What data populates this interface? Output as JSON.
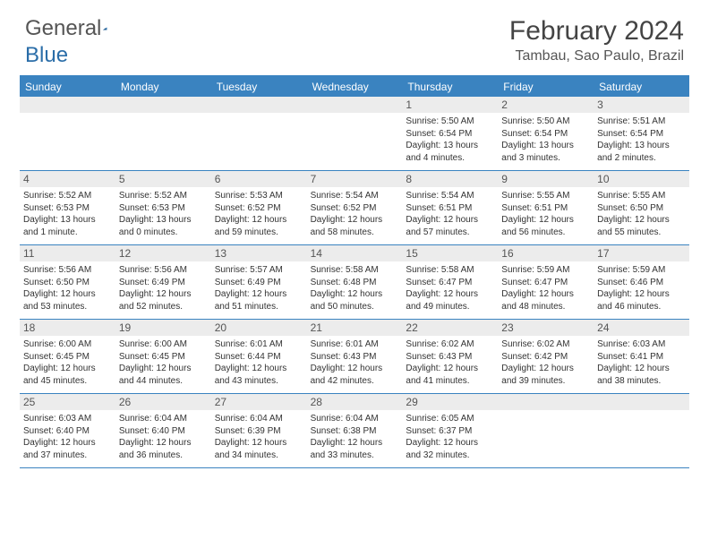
{
  "logo": {
    "part1": "General",
    "part2": "Blue"
  },
  "title": "February 2024",
  "subtitle": "Tambau, Sao Paulo, Brazil",
  "colors": {
    "header_bg": "#3a83c0",
    "header_text": "#ffffff",
    "daynum_bg": "#ececec",
    "border": "#3a83c0",
    "text": "#333333"
  },
  "daynames": [
    "Sunday",
    "Monday",
    "Tuesday",
    "Wednesday",
    "Thursday",
    "Friday",
    "Saturday"
  ],
  "weeks": [
    [
      {
        "n": "",
        "sr": "",
        "ss": "",
        "dl": ""
      },
      {
        "n": "",
        "sr": "",
        "ss": "",
        "dl": ""
      },
      {
        "n": "",
        "sr": "",
        "ss": "",
        "dl": ""
      },
      {
        "n": "",
        "sr": "",
        "ss": "",
        "dl": ""
      },
      {
        "n": "1",
        "sr": "Sunrise: 5:50 AM",
        "ss": "Sunset: 6:54 PM",
        "dl": "Daylight: 13 hours and 4 minutes."
      },
      {
        "n": "2",
        "sr": "Sunrise: 5:50 AM",
        "ss": "Sunset: 6:54 PM",
        "dl": "Daylight: 13 hours and 3 minutes."
      },
      {
        "n": "3",
        "sr": "Sunrise: 5:51 AM",
        "ss": "Sunset: 6:54 PM",
        "dl": "Daylight: 13 hours and 2 minutes."
      }
    ],
    [
      {
        "n": "4",
        "sr": "Sunrise: 5:52 AM",
        "ss": "Sunset: 6:53 PM",
        "dl": "Daylight: 13 hours and 1 minute."
      },
      {
        "n": "5",
        "sr": "Sunrise: 5:52 AM",
        "ss": "Sunset: 6:53 PM",
        "dl": "Daylight: 13 hours and 0 minutes."
      },
      {
        "n": "6",
        "sr": "Sunrise: 5:53 AM",
        "ss": "Sunset: 6:52 PM",
        "dl": "Daylight: 12 hours and 59 minutes."
      },
      {
        "n": "7",
        "sr": "Sunrise: 5:54 AM",
        "ss": "Sunset: 6:52 PM",
        "dl": "Daylight: 12 hours and 58 minutes."
      },
      {
        "n": "8",
        "sr": "Sunrise: 5:54 AM",
        "ss": "Sunset: 6:51 PM",
        "dl": "Daylight: 12 hours and 57 minutes."
      },
      {
        "n": "9",
        "sr": "Sunrise: 5:55 AM",
        "ss": "Sunset: 6:51 PM",
        "dl": "Daylight: 12 hours and 56 minutes."
      },
      {
        "n": "10",
        "sr": "Sunrise: 5:55 AM",
        "ss": "Sunset: 6:50 PM",
        "dl": "Daylight: 12 hours and 55 minutes."
      }
    ],
    [
      {
        "n": "11",
        "sr": "Sunrise: 5:56 AM",
        "ss": "Sunset: 6:50 PM",
        "dl": "Daylight: 12 hours and 53 minutes."
      },
      {
        "n": "12",
        "sr": "Sunrise: 5:56 AM",
        "ss": "Sunset: 6:49 PM",
        "dl": "Daylight: 12 hours and 52 minutes."
      },
      {
        "n": "13",
        "sr": "Sunrise: 5:57 AM",
        "ss": "Sunset: 6:49 PM",
        "dl": "Daylight: 12 hours and 51 minutes."
      },
      {
        "n": "14",
        "sr": "Sunrise: 5:58 AM",
        "ss": "Sunset: 6:48 PM",
        "dl": "Daylight: 12 hours and 50 minutes."
      },
      {
        "n": "15",
        "sr": "Sunrise: 5:58 AM",
        "ss": "Sunset: 6:47 PM",
        "dl": "Daylight: 12 hours and 49 minutes."
      },
      {
        "n": "16",
        "sr": "Sunrise: 5:59 AM",
        "ss": "Sunset: 6:47 PM",
        "dl": "Daylight: 12 hours and 48 minutes."
      },
      {
        "n": "17",
        "sr": "Sunrise: 5:59 AM",
        "ss": "Sunset: 6:46 PM",
        "dl": "Daylight: 12 hours and 46 minutes."
      }
    ],
    [
      {
        "n": "18",
        "sr": "Sunrise: 6:00 AM",
        "ss": "Sunset: 6:45 PM",
        "dl": "Daylight: 12 hours and 45 minutes."
      },
      {
        "n": "19",
        "sr": "Sunrise: 6:00 AM",
        "ss": "Sunset: 6:45 PM",
        "dl": "Daylight: 12 hours and 44 minutes."
      },
      {
        "n": "20",
        "sr": "Sunrise: 6:01 AM",
        "ss": "Sunset: 6:44 PM",
        "dl": "Daylight: 12 hours and 43 minutes."
      },
      {
        "n": "21",
        "sr": "Sunrise: 6:01 AM",
        "ss": "Sunset: 6:43 PM",
        "dl": "Daylight: 12 hours and 42 minutes."
      },
      {
        "n": "22",
        "sr": "Sunrise: 6:02 AM",
        "ss": "Sunset: 6:43 PM",
        "dl": "Daylight: 12 hours and 41 minutes."
      },
      {
        "n": "23",
        "sr": "Sunrise: 6:02 AM",
        "ss": "Sunset: 6:42 PM",
        "dl": "Daylight: 12 hours and 39 minutes."
      },
      {
        "n": "24",
        "sr": "Sunrise: 6:03 AM",
        "ss": "Sunset: 6:41 PM",
        "dl": "Daylight: 12 hours and 38 minutes."
      }
    ],
    [
      {
        "n": "25",
        "sr": "Sunrise: 6:03 AM",
        "ss": "Sunset: 6:40 PM",
        "dl": "Daylight: 12 hours and 37 minutes."
      },
      {
        "n": "26",
        "sr": "Sunrise: 6:04 AM",
        "ss": "Sunset: 6:40 PM",
        "dl": "Daylight: 12 hours and 36 minutes."
      },
      {
        "n": "27",
        "sr": "Sunrise: 6:04 AM",
        "ss": "Sunset: 6:39 PM",
        "dl": "Daylight: 12 hours and 34 minutes."
      },
      {
        "n": "28",
        "sr": "Sunrise: 6:04 AM",
        "ss": "Sunset: 6:38 PM",
        "dl": "Daylight: 12 hours and 33 minutes."
      },
      {
        "n": "29",
        "sr": "Sunrise: 6:05 AM",
        "ss": "Sunset: 6:37 PM",
        "dl": "Daylight: 12 hours and 32 minutes."
      },
      {
        "n": "",
        "sr": "",
        "ss": "",
        "dl": ""
      },
      {
        "n": "",
        "sr": "",
        "ss": "",
        "dl": ""
      }
    ]
  ]
}
